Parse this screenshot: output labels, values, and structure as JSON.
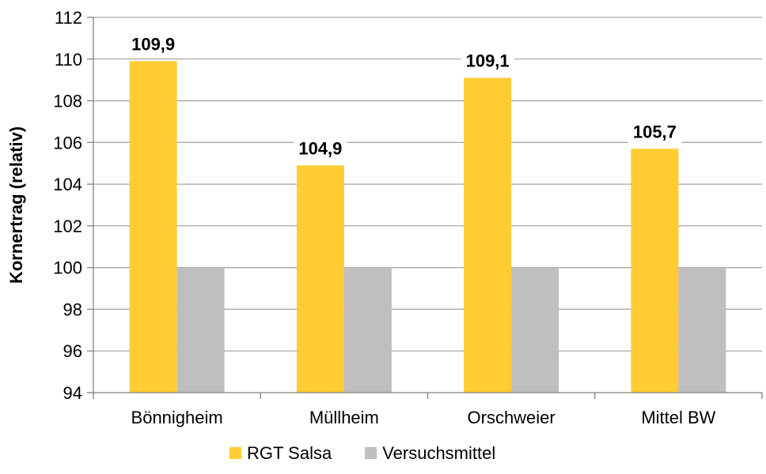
{
  "chart_data": {
    "type": "bar",
    "categories": [
      "Bönnigheim",
      "Müllheim",
      "Orschweier",
      "Mittel BW"
    ],
    "series": [
      {
        "name": "RGT Salsa",
        "values": [
          109.9,
          104.9,
          109.1,
          105.7
        ],
        "color": "#FFCC33",
        "data_labels": [
          "109,9",
          "104,9",
          "109,1",
          "105,7"
        ]
      },
      {
        "name": "Versuchsmittel",
        "values": [
          100,
          100,
          100,
          100
        ],
        "color": "#BFBFBF"
      }
    ],
    "title": "",
    "xlabel": "",
    "ylabel": "Kornertrag (relativ)",
    "ylim": [
      94,
      112
    ],
    "yticks": [
      94,
      96,
      98,
      100,
      102,
      104,
      106,
      108,
      110,
      112
    ],
    "grid": true,
    "grid_color": "#A6A6A6",
    "legend_position": "bottom"
  }
}
